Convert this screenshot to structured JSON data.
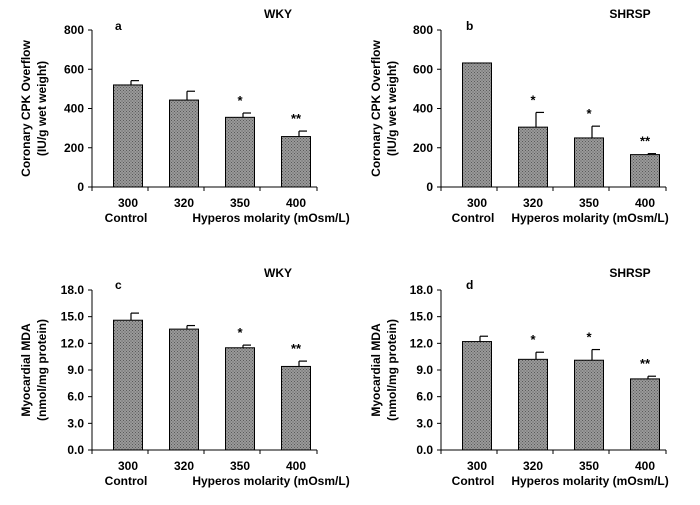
{
  "chart_data": [
    {
      "type": "bar",
      "panel_label": "a",
      "title": "WKY",
      "ylabel": [
        "Coronary CPK Overflow",
        "(IU/g wet weight)"
      ],
      "ylim": [
        0,
        800
      ],
      "yticks": [
        "0",
        "200",
        "400",
        "600",
        "800"
      ],
      "ytick_values": [
        0,
        200,
        400,
        600,
        800
      ],
      "categories": [
        "300",
        "320",
        "350",
        "400"
      ],
      "values": [
        520,
        443,
        355,
        257
      ],
      "errors": [
        22,
        45,
        22,
        28
      ],
      "significance": [
        "",
        "",
        "*",
        "**"
      ]
    },
    {
      "type": "bar",
      "panel_label": "b",
      "title": "SHRSP",
      "ylabel": [
        "Coronary CPK Overflow",
        "(IU/g wet weight)"
      ],
      "ylim": [
        0,
        800
      ],
      "yticks": [
        "0",
        "200",
        "400",
        "600",
        "800"
      ],
      "ytick_values": [
        0,
        200,
        400,
        600,
        800
      ],
      "categories": [
        "300",
        "320",
        "350",
        "400"
      ],
      "values": [
        632,
        305,
        250,
        165
      ],
      "errors": [
        0,
        75,
        60,
        5
      ],
      "significance": [
        "",
        "*",
        "*",
        "**"
      ]
    },
    {
      "type": "bar",
      "panel_label": "c",
      "title": "WKY",
      "ylabel": [
        "Myocardial MDA",
        "(nmol/mg protein)"
      ],
      "ylim": [
        0,
        18
      ],
      "yticks": [
        "0.0",
        "3.0",
        "6.0",
        "9.0",
        "12.0",
        "15.0",
        "18.0"
      ],
      "ytick_values": [
        0,
        3,
        6,
        9,
        12,
        15,
        18
      ],
      "categories": [
        "300",
        "320",
        "350",
        "400"
      ],
      "values": [
        14.6,
        13.6,
        11.5,
        9.4
      ],
      "errors": [
        0.8,
        0.4,
        0.3,
        0.6
      ],
      "significance": [
        "",
        "",
        "*",
        "**"
      ]
    },
    {
      "type": "bar",
      "panel_label": "d",
      "title": "SHRSP",
      "ylabel": [
        "Myocardial MDA",
        "(nmol/mg protein)"
      ],
      "ylim": [
        0,
        18
      ],
      "yticks": [
        "0.0",
        "3.0",
        "6.0",
        "9.0",
        "12.0",
        "15.0",
        "18.0"
      ],
      "ytick_values": [
        0,
        3,
        6,
        9,
        12,
        15,
        18
      ],
      "categories": [
        "300",
        "320",
        "350",
        "400"
      ],
      "values": [
        12.2,
        10.2,
        10.1,
        8.0
      ],
      "errors": [
        0.6,
        0.8,
        1.2,
        0.3
      ],
      "significance": [
        "",
        "*",
        "*",
        "**"
      ]
    }
  ],
  "xlabel_control": "Control",
  "xlabel_hyper": "Hyperos molarity (mOsm/L)",
  "bar_fill": "#8c8c8c"
}
